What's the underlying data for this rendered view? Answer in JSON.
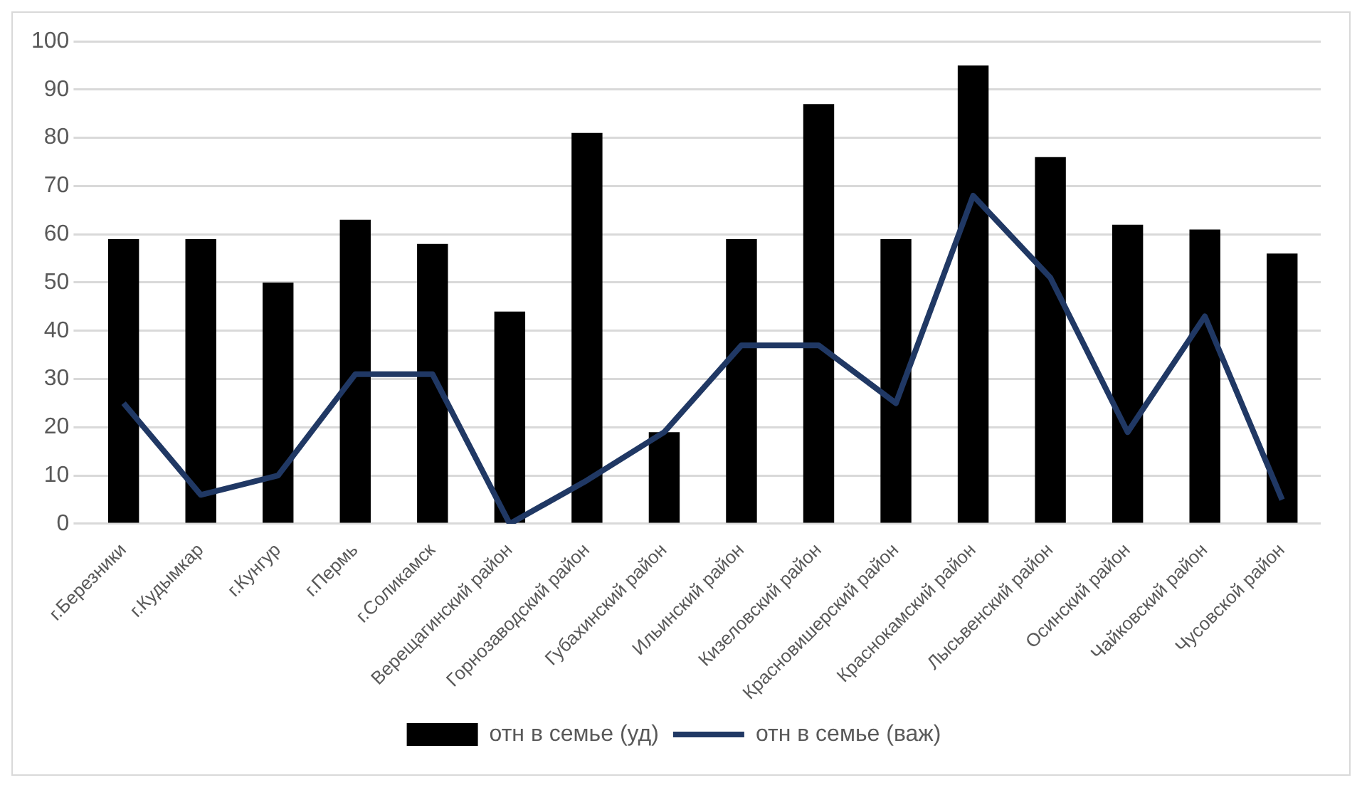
{
  "chart_data": {
    "type": "bar",
    "categories": [
      "г.Березники",
      "г.Кудымкар",
      "г.Кунгур",
      "г.Пермь",
      "г.Соликамск",
      "Верещагинский район",
      "Горнозаводский район",
      "Губахинский район",
      "Ильинский район",
      "Кизеловский район",
      "Красновишерский район",
      "Краснокамский район",
      "Лысьвенский район",
      "Осинский район",
      "Чайковский район",
      "Чусовской район"
    ],
    "series": [
      {
        "name": "отн в семье (уд)",
        "color": "#000000",
        "values": [
          59,
          59,
          50,
          63,
          58,
          44,
          81,
          19,
          59,
          87,
          59,
          95,
          76,
          62,
          61,
          56
        ]
      },
      {
        "name": "отн в семье (важ)",
        "type": "line",
        "color": "#203864",
        "values": [
          25,
          6,
          10,
          31,
          31,
          0,
          9,
          19,
          37,
          37,
          25,
          68,
          51,
          19,
          43,
          5
        ]
      }
    ],
    "ylim": [
      0,
      100
    ],
    "yticks": [
      0,
      10,
      20,
      30,
      40,
      50,
      60,
      70,
      80,
      90,
      100
    ],
    "grid": "y",
    "legend": "bottom",
    "marker": "none"
  }
}
